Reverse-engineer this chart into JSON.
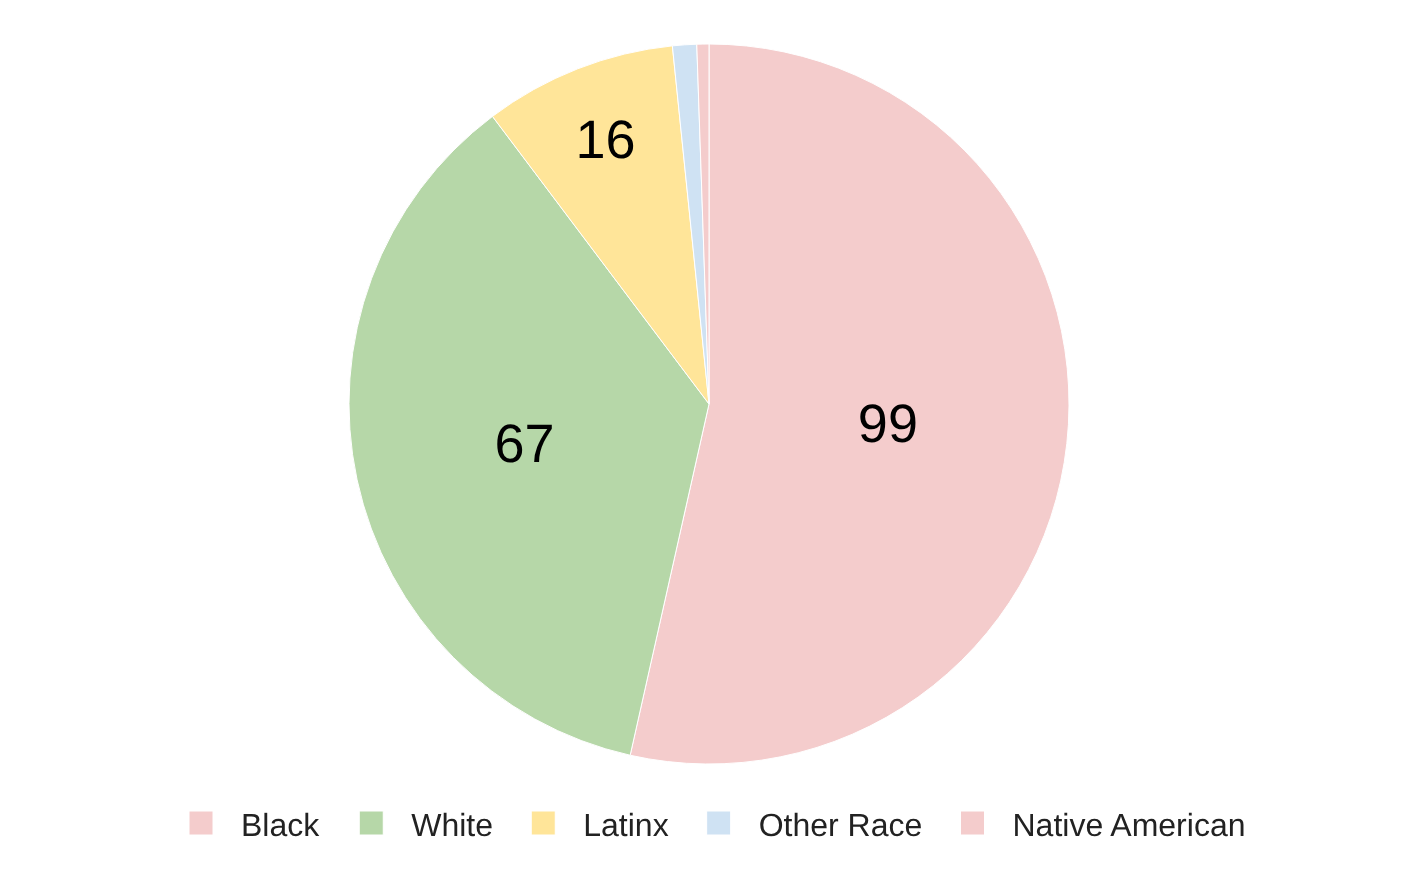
{
  "chart_data": {
    "type": "pie",
    "categories": [
      "Black",
      "White",
      "Latinx",
      "Other Race",
      "Native American"
    ],
    "values": [
      99,
      67,
      16,
      2,
      1
    ],
    "colors": [
      "#f4cccc",
      "#b6d7a8",
      "#ffe599",
      "#cfe2f3",
      "#f4cccc"
    ],
    "value_labels": [
      "99",
      "67",
      "16",
      null,
      null
    ],
    "legend": "bottom"
  }
}
